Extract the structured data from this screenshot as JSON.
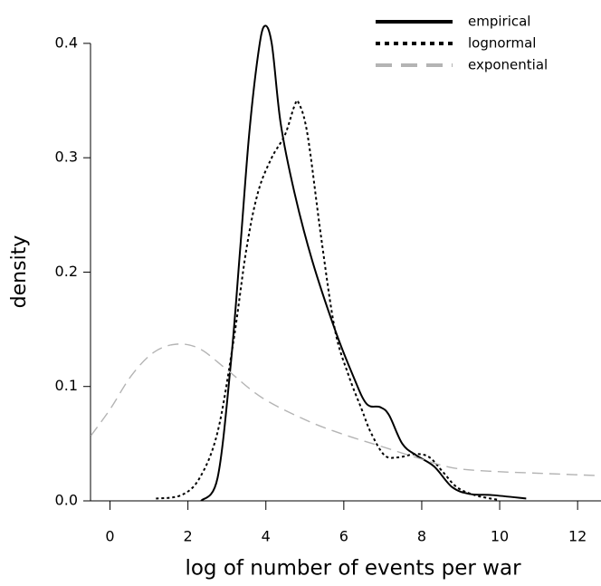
{
  "chart_data": {
    "type": "line",
    "xlabel": "log of number of events per war",
    "ylabel": "density",
    "xlim": [
      -0.5,
      12.6
    ],
    "ylim": [
      0,
      0.43
    ],
    "xticks": [
      0,
      2,
      4,
      6,
      8,
      10,
      12
    ],
    "yticks": [
      {
        "value": 0,
        "label": "0.0"
      },
      0.1,
      0.2,
      0.3,
      0.4
    ],
    "legend": "upper right",
    "series": [
      {
        "name": "empirical",
        "color": "#000000",
        "dash": "solid",
        "x": [
          2.34,
          2.76,
          3.1,
          3.34,
          3.57,
          3.8,
          3.96,
          4.15,
          4.38,
          4.73,
          5.19,
          5.77,
          6.23,
          6.58,
          6.93,
          7.16,
          7.5,
          7.85,
          8.32,
          8.78,
          9.24,
          9.82,
          10.68
        ],
        "values": [
          0.0,
          0.02,
          0.12,
          0.22,
          0.32,
          0.39,
          0.415,
          0.4,
          0.33,
          0.27,
          0.21,
          0.15,
          0.11,
          0.085,
          0.082,
          0.075,
          0.05,
          0.04,
          0.03,
          0.012,
          0.006,
          0.005,
          0.002
        ]
      },
      {
        "name": "lognormal",
        "color": "#000000",
        "dash": "dotted",
        "x": [
          1.18,
          1.83,
          2.3,
          2.76,
          3.17,
          3.5,
          3.8,
          4.15,
          4.49,
          4.73,
          4.84,
          5.07,
          5.42,
          5.77,
          6.12,
          6.46,
          6.69,
          7.04,
          7.39,
          7.85,
          8.2,
          8.55,
          8.9,
          9.36,
          9.94
        ],
        "values": [
          0.002,
          0.005,
          0.02,
          0.06,
          0.14,
          0.22,
          0.27,
          0.3,
          0.32,
          0.345,
          0.348,
          0.32,
          0.23,
          0.15,
          0.11,
          0.08,
          0.06,
          0.04,
          0.038,
          0.041,
          0.038,
          0.025,
          0.012,
          0.005,
          0.001
        ]
      },
      {
        "name": "exponential",
        "color": "#b4b4b4",
        "dash": "dashed",
        "x": [
          -0.49,
          0,
          0.56,
          1.13,
          1.71,
          2.3,
          2.99,
          3.91,
          5.07,
          6.0,
          6.93,
          7.85,
          8.78,
          9.71,
          11.1,
          12.58
        ],
        "values": [
          0.057,
          0.08,
          0.11,
          0.13,
          0.137,
          0.133,
          0.115,
          0.09,
          0.07,
          0.058,
          0.048,
          0.038,
          0.029,
          0.026,
          0.024,
          0.022
        ]
      }
    ]
  }
}
